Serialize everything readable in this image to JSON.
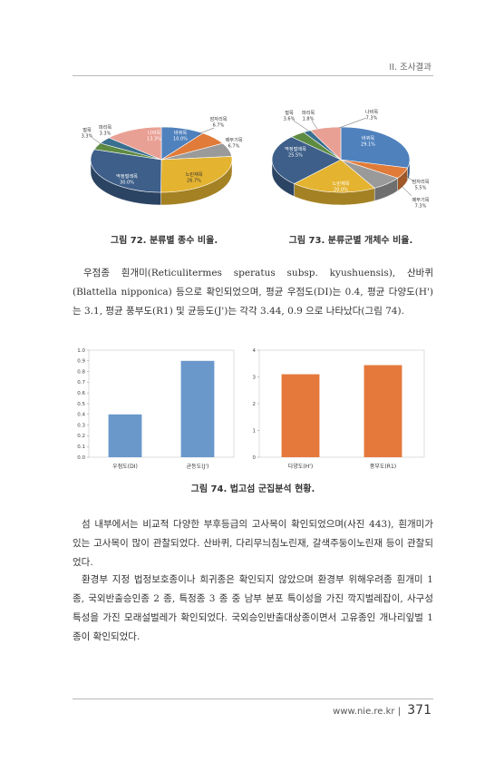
{
  "header": {
    "section": "II. 조사결과"
  },
  "colors": {
    "blue": "#4f81bd",
    "orange": "#e07b39",
    "gray": "#9a9a9a",
    "gold": "#e4b330",
    "green": "#5e8b42",
    "navy": "#3d5f8a",
    "pink": "#e9a094",
    "bar_blue": "#6a98cb",
    "bar_orange": "#e5793c"
  },
  "chart_data": [
    {
      "type": "pie",
      "caption": "그림 72. 분류별 종수 비율.",
      "slices": [
        {
          "label": "바퀴목",
          "value": 10.0,
          "text": "10.0%",
          "color": "#4f81bd"
        },
        {
          "label": "잠자리목",
          "value": 6.7,
          "text": "6.7%",
          "color": "#e07b39"
        },
        {
          "label": "메뚜기목",
          "value": 6.7,
          "text": "6.7%",
          "color": "#9a9a9a"
        },
        {
          "label": "노린재목",
          "value": 26.7,
          "text": "26.7%",
          "color": "#e4b330"
        },
        {
          "label": "딱정벌레목",
          "value": 30.0,
          "text": "30.0%",
          "color": "#3d5f8a"
        },
        {
          "label": "벌목",
          "value": 3.3,
          "text": "3.3%",
          "color": "#5e8b42"
        },
        {
          "label": "파리목",
          "value": 3.3,
          "text": "3.3%",
          "color": "#3a6f8f"
        },
        {
          "label": "나비목",
          "value": 13.3,
          "text": "13.3%",
          "color": "#e9a094"
        }
      ]
    },
    {
      "type": "pie",
      "caption": "그림 73. 분류군별 개체수 비율.",
      "slices": [
        {
          "label": "바퀴목",
          "value": 29.1,
          "text": "29.1%",
          "color": "#4f81bd"
        },
        {
          "label": "잠자리목",
          "value": 5.5,
          "text": "5.5%",
          "color": "#e07b39"
        },
        {
          "label": "메뚜기목",
          "value": 7.3,
          "text": "7.3%",
          "color": "#9a9a9a"
        },
        {
          "label": "노린재목",
          "value": 20.0,
          "text": "20.0%",
          "color": "#e4b330"
        },
        {
          "label": "딱정벌레목",
          "value": 25.5,
          "text": "25.5%",
          "color": "#3d5f8a"
        },
        {
          "label": "벌목",
          "value": 3.6,
          "text": "3.6%",
          "color": "#5e8b42"
        },
        {
          "label": "파리목",
          "value": 1.8,
          "text": "1.8%",
          "color": "#3a6f8f"
        },
        {
          "label": "나비목",
          "value": 7.3,
          "text": "7.3%",
          "color": "#e9a094"
        }
      ]
    },
    {
      "type": "bar",
      "categories": [
        "우점도(DI)",
        "균등도(J')"
      ],
      "values": [
        0.4,
        0.9
      ],
      "ylim": [
        0,
        1.0
      ],
      "yticks": [
        "0.0",
        "0.1",
        "0.2",
        "0.3",
        "0.4",
        "0.5",
        "0.6",
        "0.7",
        "0.8",
        "0.9",
        "1.0"
      ],
      "color": "#6a98cb"
    },
    {
      "type": "bar",
      "categories": [
        "다양도(H')",
        "풍부도(R1)"
      ],
      "values": [
        3.1,
        3.44
      ],
      "ylim": [
        0,
        4
      ],
      "yticks": [
        "0",
        "1",
        "2",
        "3",
        "4"
      ],
      "color": "#e5793c"
    }
  ],
  "figure74_caption": "그림 74. 법고섬 군집분석 현황.",
  "paragraphs": [
    "우점종 흰개미(Reticulitermes speratus subsp. kyushuensis), 산바퀴(Blattella nipponica) 등으로 확인되었으며, 평균 우점도(DI)는 0.4, 평균 다양도(H')는 3.1, 평균 풍부도(R1) 및 균등도(J')는 각각 3.44, 0.9 으로 나타났다(그림 74).",
    "섬 내부에서는 비교적 다양한 부후등급의 고사목이 확인되었으며(사진 443), 흰개미가 있는 고사목이 많이 관찰되었다. 산바퀴, 다리무늬침노린재, 갈색주둥이노린재 등이 관찰되었다.",
    "환경부 지정 법정보호종이나 희귀종은 확인되지 않았으며 환경부 위해우려종 흰개미 1 종, 국외반출승인종 2 종, 특정종 3 종 중 남부 분포 특이성을 가진 깍지벌레잡이, 사구성 특성을 가진 모래설벌레가 확인되었다. 국외승인반출대상종이면서 고유종인 개나리잎벌 1 종이 확인되었다."
  ],
  "footer": {
    "url": "www.nie.re.kr",
    "page": "371"
  }
}
